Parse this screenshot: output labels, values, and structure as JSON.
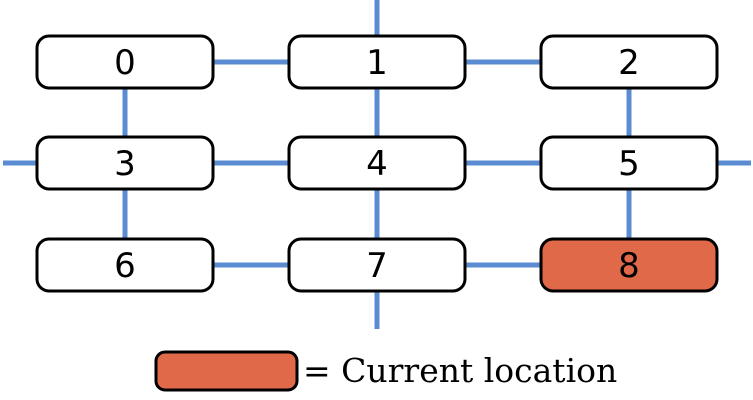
{
  "colors": {
    "connector": "#5b8bd0",
    "node_fill": "#ffffff",
    "current_fill": "#e0694a",
    "outline": "#000000"
  },
  "nodes": [
    {
      "label": "0",
      "current": false
    },
    {
      "label": "1",
      "current": false
    },
    {
      "label": "2",
      "current": false
    },
    {
      "label": "3",
      "current": false
    },
    {
      "label": "4",
      "current": false
    },
    {
      "label": "5",
      "current": false
    },
    {
      "label": "6",
      "current": false
    },
    {
      "label": "7",
      "current": false
    },
    {
      "label": "8",
      "current": true
    }
  ],
  "edges": [
    [
      0,
      1
    ],
    [
      1,
      2
    ],
    [
      0,
      3
    ],
    [
      1,
      4
    ],
    [
      2,
      5
    ],
    [
      3,
      4
    ],
    [
      4,
      5
    ],
    [
      3,
      6
    ],
    [
      4,
      7
    ],
    [
      5,
      8
    ],
    [
      6,
      7
    ],
    [
      7,
      8
    ]
  ],
  "wrap_edges": [
    "top-1",
    "bottom-7",
    "left-3",
    "right-5"
  ],
  "legend": {
    "text": "= Current location"
  }
}
